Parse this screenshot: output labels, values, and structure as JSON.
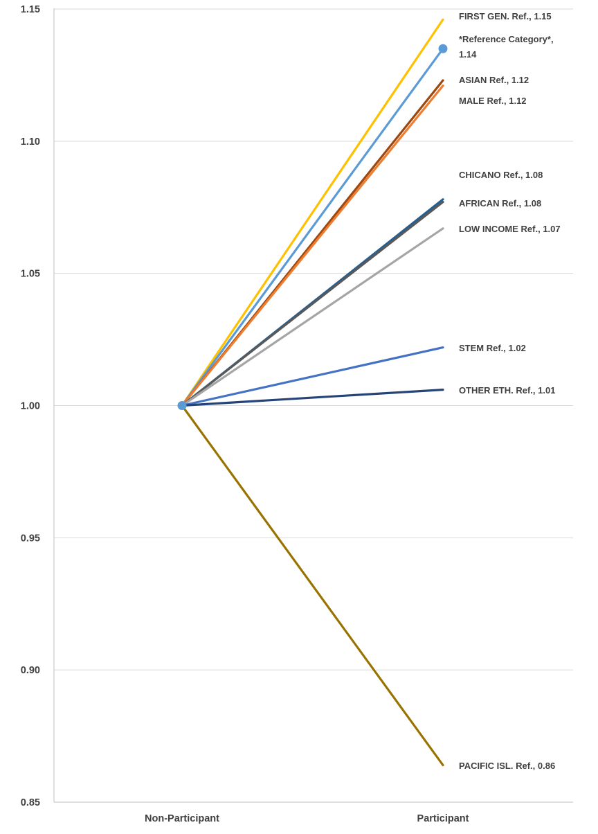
{
  "chart_data": {
    "type": "line",
    "title": "",
    "xlabel": "",
    "ylabel": "",
    "categories": [
      "Non-Participant",
      "Participant"
    ],
    "ylim": [
      0.85,
      1.15
    ],
    "yticks": [
      "0.85",
      "0.90",
      "0.95",
      "1.00",
      "1.05",
      "1.10",
      "1.15"
    ],
    "grid": true,
    "series": [
      {
        "name": "FIRST GEN. Ref.",
        "values": [
          1.0,
          1.146
        ],
        "label": "FIRST GEN. Ref., 1.15",
        "color": "#FFC000"
      },
      {
        "name": "*Reference Category*",
        "values": [
          1.0,
          1.135
        ],
        "label_lines": [
          "*Reference Category*,",
          "1.14"
        ],
        "color": "#5B9BD5",
        "markers": true
      },
      {
        "name": "ASIAN Ref.",
        "values": [
          1.0,
          1.123
        ],
        "label": "ASIAN Ref., 1.12",
        "color": "#9E480E"
      },
      {
        "name": "MALE Ref.",
        "values": [
          1.0,
          1.121
        ],
        "label": "MALE Ref., 1.12",
        "color": "#ED7D31"
      },
      {
        "name": "CHICANO Ref.",
        "values": [
          1.0,
          1.078
        ],
        "label": "CHICANO Ref., 1.08",
        "color": "#255E91"
      },
      {
        "name": "AFRICAN Ref.",
        "values": [
          1.0,
          1.077
        ],
        "label": "AFRICAN Ref., 1.08",
        "color": "#595959"
      },
      {
        "name": "LOW INCOME Ref.",
        "values": [
          1.0,
          1.067
        ],
        "label": "LOW INCOME Ref., 1.07",
        "color": "#A5A5A5"
      },
      {
        "name": "STEM Ref.",
        "values": [
          1.0,
          1.022
        ],
        "label": "STEM Ref., 1.02",
        "color": "#4472C4"
      },
      {
        "name": "OTHER ETH. Ref.",
        "values": [
          1.0,
          1.006
        ],
        "label": "OTHER ETH. Ref., 1.01",
        "color": "#264478"
      },
      {
        "name": "PACIFIC ISL. Ref.",
        "values": [
          1.0,
          0.864
        ],
        "label": "PACIFIC ISL. Ref., 0.86",
        "color": "#997300"
      }
    ]
  }
}
